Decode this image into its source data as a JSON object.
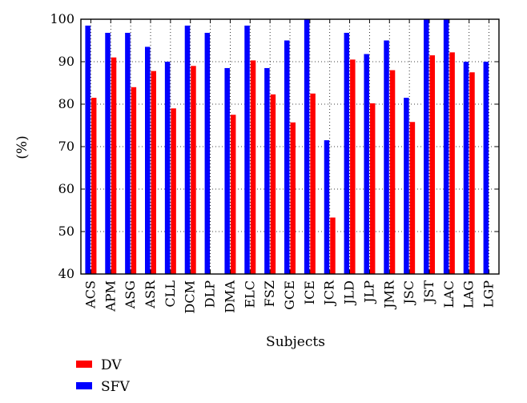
{
  "chart_data": {
    "type": "bar",
    "categories": [
      "ACS",
      "APM",
      "ASG",
      "ASR",
      "CLL",
      "DCM",
      "DLP",
      "DMA",
      "ELC",
      "FSZ",
      "GCE",
      "ICE",
      "JCR",
      "JLD",
      "JLP",
      "JMR",
      "JSC",
      "JST",
      "LAC",
      "LAG",
      "LGP"
    ],
    "series": [
      {
        "name": "SFV",
        "color": "#0000ff",
        "values": [
          98.5,
          96.8,
          96.8,
          93.5,
          90.0,
          98.5,
          96.8,
          88.5,
          98.5,
          88.5,
          95.0,
          100,
          71.5,
          96.8,
          91.8,
          95.0,
          81.5,
          100,
          100,
          90.0,
          90.0
        ]
      },
      {
        "name": "DV",
        "color": "#ff0000",
        "values": [
          81.5,
          91.0,
          84.0,
          87.8,
          79.0,
          89.0,
          null,
          77.5,
          90.3,
          82.3,
          75.7,
          82.5,
          53.3,
          90.5,
          80.2,
          88.0,
          75.8,
          91.5,
          92.2,
          87.5,
          null
        ]
      }
    ],
    "title": "",
    "xlabel": "Subjects",
    "ylabel": "(%)",
    "ylim": [
      40,
      100
    ],
    "yticks": [
      40,
      50,
      60,
      70,
      80,
      90,
      100
    ],
    "grid": "dotted",
    "legend": {
      "position": "bottom-left",
      "entries": [
        "DV",
        "SFV"
      ]
    }
  }
}
